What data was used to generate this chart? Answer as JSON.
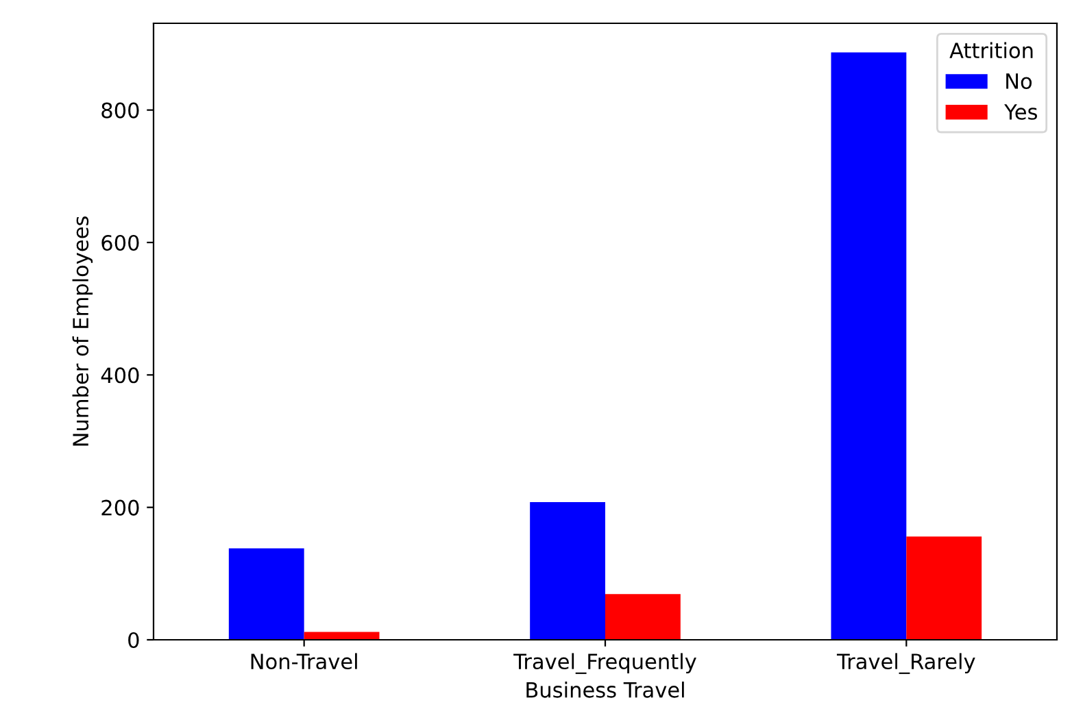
{
  "chart_data": {
    "type": "bar",
    "xlabel": "Business Travel",
    "ylabel": "Number of Employees",
    "legend_title": "Attrition",
    "categories": [
      "Non-Travel",
      "Travel_Frequently",
      "Travel_Rarely"
    ],
    "series": [
      {
        "name": "No",
        "color": "#0000ff",
        "values": [
          138,
          208,
          887
        ]
      },
      {
        "name": "Yes",
        "color": "#ff0000",
        "values": [
          12,
          69,
          156
        ]
      }
    ],
    "ylim": [
      0,
      931
    ],
    "yticks": [
      0,
      200,
      400,
      600,
      800
    ],
    "grid": false,
    "legend": "top right"
  }
}
